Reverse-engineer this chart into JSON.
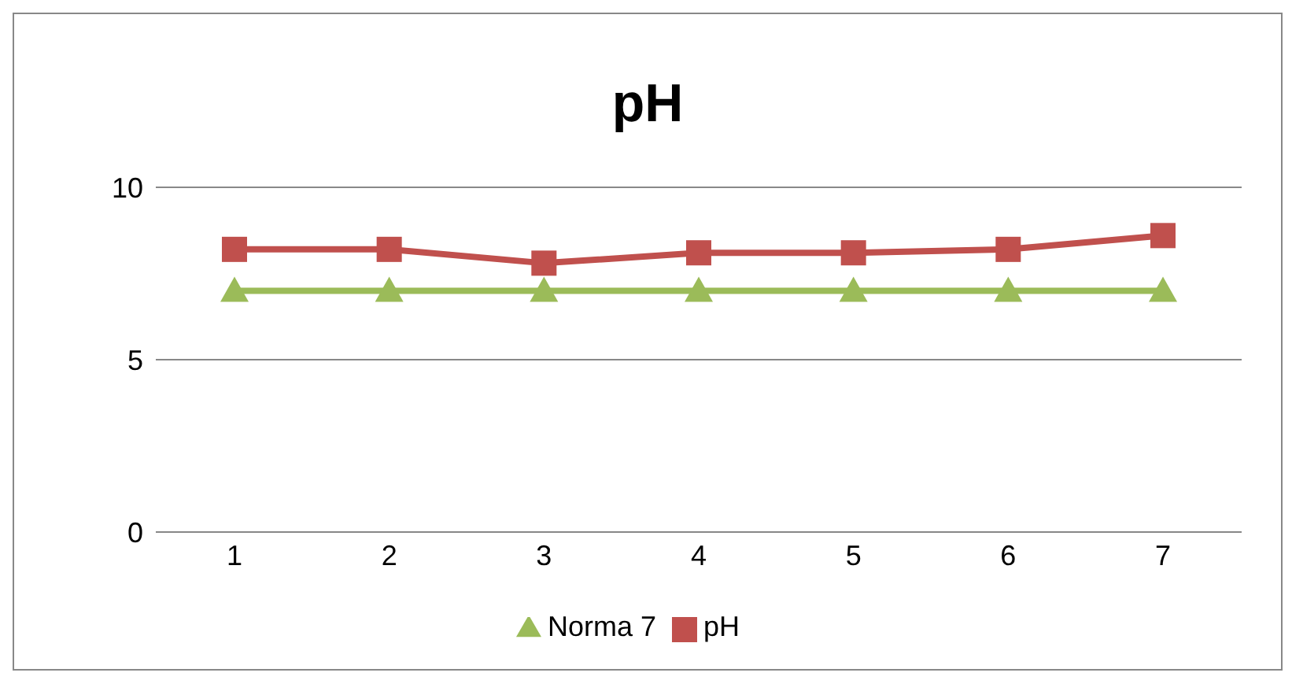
{
  "chart_data": {
    "type": "line",
    "title": "pH",
    "categories": [
      "1",
      "2",
      "3",
      "4",
      "5",
      "6",
      "7"
    ],
    "series": [
      {
        "name": "pH",
        "color": "#c0504d",
        "marker": "square",
        "values": [
          8.2,
          8.2,
          7.8,
          8.1,
          8.1,
          8.2,
          8.6
        ]
      },
      {
        "name": "Norma 7",
        "color": "#9bbb59",
        "marker": "triangle",
        "values": [
          7,
          7,
          7,
          7,
          7,
          7,
          7
        ]
      }
    ],
    "ylim": [
      0,
      10
    ],
    "yticks": [
      0,
      5,
      10
    ],
    "grid": "y",
    "legend": "bottom"
  }
}
